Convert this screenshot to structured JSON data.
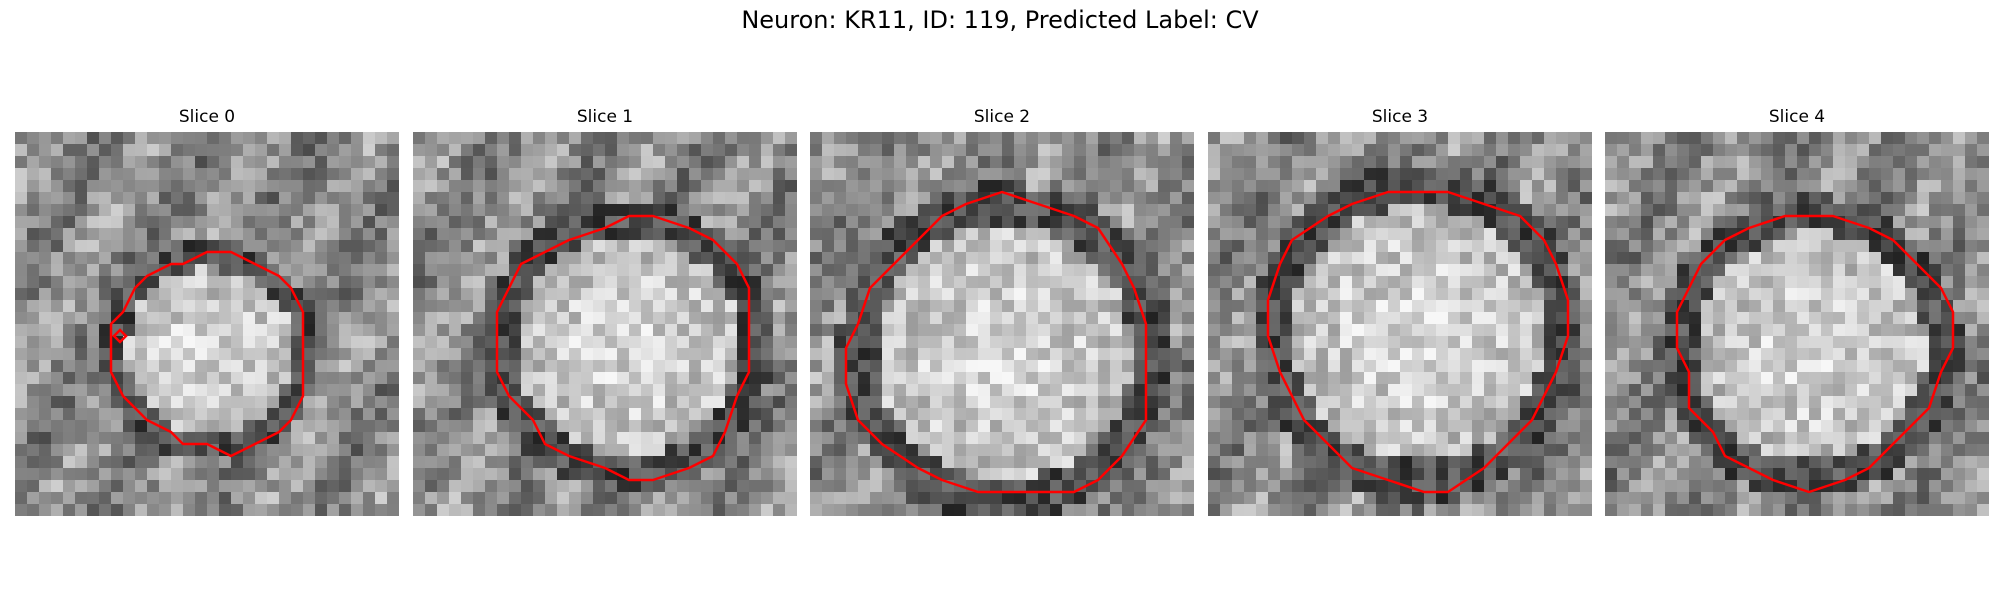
{
  "figure": {
    "title": "Neuron: KR11, ID: 119, Predicted Label: CV"
  },
  "slices": [
    {
      "title": "Slice 0"
    },
    {
      "title": "Slice 1"
    },
    {
      "title": "Slice 2"
    },
    {
      "title": "Slice 3"
    },
    {
      "title": "Slice 4"
    }
  ],
  "colors": {
    "contour": "#ff0000",
    "background": "#ffffff",
    "colormap": "grayscale"
  }
}
